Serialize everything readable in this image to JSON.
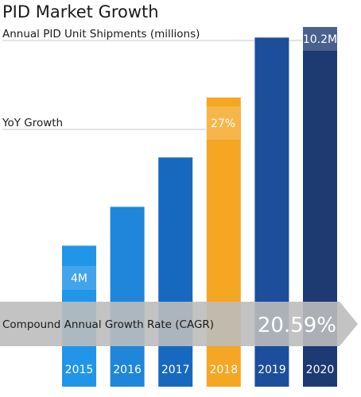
{
  "chart_data": {
    "type": "bar",
    "title": "PID Market Growth",
    "categories": [
      "2015",
      "2016",
      "2017",
      "2018",
      "2019",
      "2020"
    ],
    "series": [
      {
        "values": [
          4.0,
          5.1,
          6.5,
          8.2,
          9.9,
          10.2
        ]
      }
    ],
    "ylim": [
      0,
      10.2
    ],
    "colors": [
      "#2196e8",
      "#1f86d9",
      "#1769c0",
      "#f5a623",
      "#1d4e9c",
      "#1d3a72"
    ],
    "highlight_color": "#f5a623",
    "annotations": {
      "shipments_label": "Annual PID Unit Shipments (millions)",
      "shipments_value": "10.2M",
      "start_value": "4M",
      "yoy_label": "YoY Growth",
      "yoy_value": "27%",
      "cagr_label": "Compound Annual Growth Rate (CAGR)",
      "cagr_value": "20.59%"
    }
  }
}
